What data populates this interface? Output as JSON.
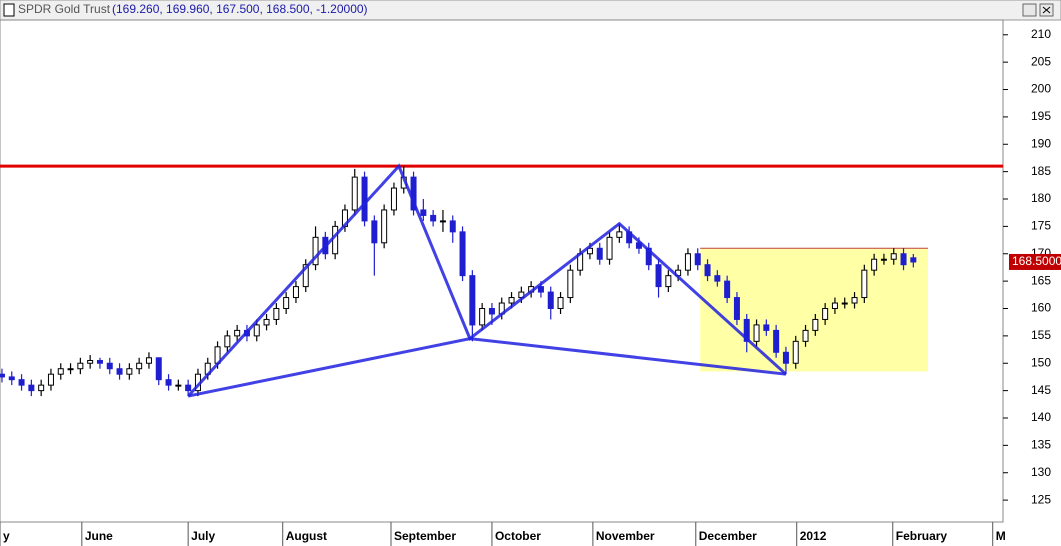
{
  "chart_data": {
    "type": "candlestick",
    "title": "SPDR Gold Trust",
    "subtitle": "(169.260, 169.960, 167.500, 168.500, -1.20000)",
    "x": [
      0,
      2,
      4,
      6,
      8,
      10,
      12,
      14,
      16,
      18,
      20,
      22,
      24,
      26,
      28,
      30,
      32,
      34,
      36,
      38,
      40,
      42,
      44,
      46,
      48,
      50,
      52,
      54,
      56,
      58,
      60,
      62,
      64,
      66,
      68,
      70,
      72,
      74,
      76,
      78,
      80,
      82,
      84,
      86,
      88,
      90,
      92,
      94,
      96,
      98,
      100,
      102,
      104,
      106,
      108,
      110,
      112,
      114,
      116,
      118,
      120,
      122,
      124,
      126,
      128,
      130,
      132,
      134,
      136,
      138,
      140,
      142,
      144,
      146,
      148,
      150,
      152,
      154,
      156,
      158,
      160,
      162,
      164,
      166,
      168,
      170,
      172,
      174,
      176,
      178,
      180,
      182,
      184,
      186
    ],
    "ohlc": [
      [
        148,
        149,
        146.5,
        147.5
      ],
      [
        147.5,
        148.5,
        146,
        147
      ],
      [
        147,
        148,
        145,
        146
      ],
      [
        146,
        147,
        144,
        145
      ],
      [
        145,
        147,
        144,
        146
      ],
      [
        146,
        149,
        145,
        148
      ],
      [
        148,
        150,
        147,
        149
      ],
      [
        149,
        150,
        148,
        149
      ],
      [
        149,
        151,
        148,
        150
      ],
      [
        150,
        151.5,
        149,
        150.5
      ],
      [
        150.5,
        151,
        149,
        150
      ],
      [
        150,
        151,
        148,
        149
      ],
      [
        149,
        150,
        147,
        148
      ],
      [
        148,
        150,
        147,
        149
      ],
      [
        149,
        151,
        148,
        150
      ],
      [
        150,
        152,
        149,
        151
      ],
      [
        151,
        151,
        146,
        147
      ],
      [
        147,
        148,
        145,
        146
      ],
      [
        146,
        147,
        145,
        146
      ],
      [
        146,
        147,
        144,
        145
      ],
      [
        145,
        149,
        144,
        148
      ],
      [
        148,
        151,
        147,
        150
      ],
      [
        150,
        154,
        149,
        153
      ],
      [
        153,
        156,
        152,
        155
      ],
      [
        155,
        157,
        154,
        156
      ],
      [
        156,
        157,
        154,
        155
      ],
      [
        155,
        158,
        154,
        157
      ],
      [
        157,
        159,
        156,
        158
      ],
      [
        158,
        161,
        157,
        160
      ],
      [
        160,
        163,
        159,
        162
      ],
      [
        162,
        165,
        161,
        164
      ],
      [
        164,
        169,
        163,
        168
      ],
      [
        168,
        175,
        167,
        173
      ],
      [
        173,
        174,
        169,
        170
      ],
      [
        170,
        176,
        169,
        175
      ],
      [
        175,
        179,
        174,
        178
      ],
      [
        178,
        185.5,
        177,
        184
      ],
      [
        184,
        185,
        175,
        176
      ],
      [
        176,
        177,
        166,
        172
      ],
      [
        172,
        179,
        171,
        178
      ],
      [
        178,
        183,
        177,
        182
      ],
      [
        182,
        186,
        181,
        184
      ],
      [
        184,
        185,
        177,
        178
      ],
      [
        178,
        180,
        176,
        177
      ],
      [
        177,
        178,
        175,
        176
      ],
      [
        176,
        178,
        174,
        176
      ],
      [
        176,
        177,
        172,
        174
      ],
      [
        174,
        175,
        165,
        166
      ],
      [
        166,
        167,
        154,
        157
      ],
      [
        157,
        161,
        156,
        160
      ],
      [
        160,
        161,
        157,
        159
      ],
      [
        159,
        162,
        158,
        161
      ],
      [
        161,
        163,
        160,
        162
      ],
      [
        162,
        164,
        161,
        163
      ],
      [
        163,
        165,
        162,
        164
      ],
      [
        164,
        165,
        162,
        163
      ],
      [
        163,
        164,
        158,
        160
      ],
      [
        160,
        163,
        159,
        162
      ],
      [
        162,
        168,
        161,
        167
      ],
      [
        167,
        171,
        166,
        170
      ],
      [
        170,
        172,
        169,
        171
      ],
      [
        171,
        172,
        168,
        169
      ],
      [
        169,
        174,
        168,
        173
      ],
      [
        173,
        175.5,
        172,
        174
      ],
      [
        174,
        175,
        171,
        172
      ],
      [
        172,
        173,
        170,
        171
      ],
      [
        171,
        172,
        167,
        168
      ],
      [
        168,
        169,
        162,
        164
      ],
      [
        164,
        167,
        163,
        166
      ],
      [
        166,
        168,
        165,
        167
      ],
      [
        167,
        171,
        166,
        170
      ],
      [
        170,
        171,
        167,
        168
      ],
      [
        168,
        169,
        165,
        166
      ],
      [
        166,
        167,
        164,
        165
      ],
      [
        165,
        166,
        161,
        162
      ],
      [
        162,
        163,
        157,
        158
      ],
      [
        158,
        159,
        152,
        154
      ],
      [
        154,
        158,
        153,
        157
      ],
      [
        157,
        158,
        155,
        156
      ],
      [
        156,
        157,
        151,
        152
      ],
      [
        152,
        153,
        148,
        150
      ],
      [
        150,
        155,
        149,
        154
      ],
      [
        154,
        157,
        153,
        156
      ],
      [
        156,
        159,
        155,
        158
      ],
      [
        158,
        161,
        157,
        160
      ],
      [
        160,
        162,
        159,
        161
      ],
      [
        161,
        162,
        160,
        161
      ],
      [
        161,
        163,
        160,
        162
      ],
      [
        162,
        168,
        161,
        167
      ],
      [
        167,
        170,
        166,
        169
      ],
      [
        169,
        170,
        168,
        169
      ],
      [
        169,
        171,
        168,
        170
      ],
      [
        170,
        171,
        167,
        168
      ],
      [
        169.26,
        169.96,
        167.5,
        168.5
      ]
    ],
    "up_color": "#000000",
    "down_color": "#1f1fd0",
    "xlim": [
      -0.4,
      204.3
    ],
    "ylim": [
      121,
      212.7
    ],
    "yticks": [
      125,
      130,
      135,
      140,
      145,
      150,
      155,
      160,
      165,
      170,
      175,
      180,
      185,
      190,
      195,
      200,
      205,
      210
    ],
    "xticks": [
      {
        "value": -0.4,
        "label": "y"
      },
      {
        "value": 16.3,
        "label": "June"
      },
      {
        "value": 38,
        "label": "July"
      },
      {
        "value": 57.3,
        "label": "August"
      },
      {
        "value": 79.4,
        "label": "September"
      },
      {
        "value": 100,
        "label": "October"
      },
      {
        "value": 120.6,
        "label": "November"
      },
      {
        "value": 141.6,
        "label": "December"
      },
      {
        "value": 162.2,
        "label": "2012"
      },
      {
        "value": 181.8,
        "label": "February"
      },
      {
        "value": 202.2,
        "label": "M"
      }
    ],
    "resistance": 186,
    "trend_lines": [
      [
        [
          38,
          144
        ],
        [
          81,
          186
        ],
        [
          95.5,
          154.5
        ],
        [
          126,
          175.5
        ],
        [
          160,
          148
        ]
      ],
      [
        [
          38,
          144
        ],
        [
          95.5,
          154.5
        ],
        [
          160,
          148
        ]
      ]
    ],
    "highlight": {
      "x": [
        142.5,
        189
      ],
      "y": [
        148.5,
        171
      ]
    },
    "last_price": {
      "value": 168.5,
      "label": "168.5000"
    }
  }
}
